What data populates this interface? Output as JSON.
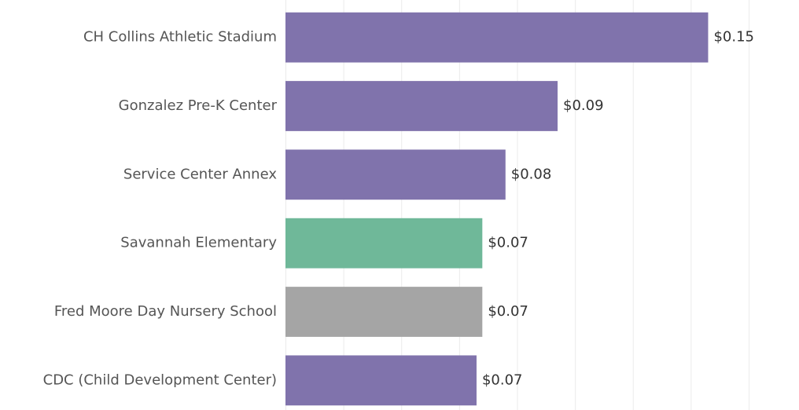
{
  "chart_data": {
    "type": "hbar",
    "categories": [
      "CH Collins Athletic Stadium",
      "Gonzalez Pre-K Center",
      "Service Center Annex",
      "Savannah Elementary",
      "Fred Moore Day Nursery School",
      "CDC (Child Development Center)"
    ],
    "values": [
      0.146,
      0.094,
      0.076,
      0.068,
      0.068,
      0.066
    ],
    "value_labels": [
      "$0.15",
      "$0.09",
      "$0.08",
      "$0.07",
      "$0.07",
      "$0.07"
    ],
    "colors": [
      "#8073ac",
      "#8073ac",
      "#8073ac",
      "#6fb899",
      "#a5a5a5",
      "#8073ac"
    ],
    "xlim": [
      0,
      0.16
    ],
    "xticks": [
      0,
      0.02,
      0.04,
      0.06,
      0.08,
      0.1,
      0.12,
      0.14,
      0.16
    ],
    "grid": true
  }
}
